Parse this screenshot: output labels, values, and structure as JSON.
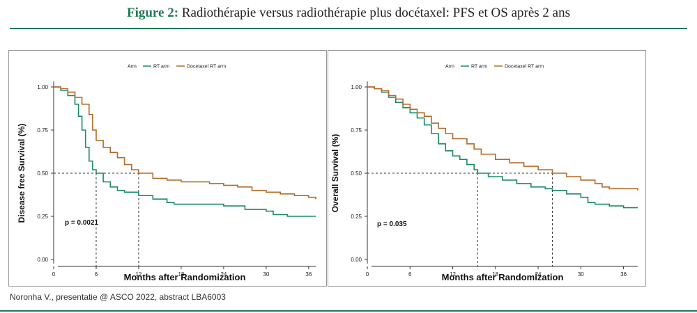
{
  "figure": {
    "label": "Figure 2:",
    "title": "Radiothérapie versus radiothérapie plus docétaxel: PFS et OS après 2 ans"
  },
  "footer": {
    "source": "Noronha V., presentatie @ ASCO 2022, abstract LBA6003"
  },
  "colors": {
    "rt_arm": "#1a8a6a",
    "docetaxel_rt_arm": "#b26a28",
    "accent": "#1f7a56"
  },
  "chart_data": [
    {
      "type": "line",
      "ylabel": "Disease free Survival (%)",
      "xlabel": "Months after Randomization",
      "xlim": [
        0,
        37
      ],
      "ylim": [
        0,
        1
      ],
      "x_ticks": [
        0,
        6,
        12,
        18,
        24,
        30,
        36
      ],
      "y_ticks": [
        0.0,
        0.25,
        0.5,
        0.75,
        1.0
      ],
      "y_tick_labels": [
        "0.00",
        "0.25",
        "0.50",
        "0.75",
        "1.00"
      ],
      "legend": {
        "title": "Arm",
        "entries": [
          "RT arm",
          "Docetaxel RT arm"
        ],
        "position": "top"
      },
      "annotation": "p = 0.0021",
      "medians": [
        6,
        12
      ],
      "series": [
        {
          "name": "RT arm",
          "x": [
            0,
            1,
            2,
            3,
            3.5,
            4,
            4.5,
            5,
            5.5,
            6,
            7,
            8,
            9,
            10,
            12,
            14,
            16,
            17,
            20,
            24,
            27,
            30,
            31,
            33,
            36,
            37
          ],
          "y": [
            1.0,
            0.98,
            0.95,
            0.9,
            0.83,
            0.75,
            0.65,
            0.57,
            0.52,
            0.5,
            0.45,
            0.42,
            0.4,
            0.39,
            0.37,
            0.35,
            0.33,
            0.32,
            0.32,
            0.31,
            0.29,
            0.28,
            0.26,
            0.25,
            0.25,
            0.25
          ]
        },
        {
          "name": "Docetaxel RT arm",
          "x": [
            0,
            1,
            2,
            3,
            4,
            5,
            5.5,
            6,
            7,
            8,
            9,
            10,
            11,
            12,
            14,
            16,
            18,
            20,
            22,
            24,
            26,
            28,
            30,
            32,
            34,
            36,
            37
          ],
          "y": [
            1.0,
            0.99,
            0.97,
            0.94,
            0.9,
            0.84,
            0.75,
            0.69,
            0.65,
            0.62,
            0.59,
            0.55,
            0.52,
            0.5,
            0.47,
            0.46,
            0.45,
            0.45,
            0.44,
            0.43,
            0.42,
            0.4,
            0.39,
            0.38,
            0.37,
            0.36,
            0.35
          ]
        }
      ]
    },
    {
      "type": "line",
      "ylabel": "Overall Survival (%)",
      "xlabel": "Months after Randomization",
      "xlim": [
        0,
        38
      ],
      "ylim": [
        0,
        1
      ],
      "x_ticks": [
        0,
        6,
        12,
        18,
        24,
        30,
        36
      ],
      "y_ticks": [
        0.0,
        0.25,
        0.5,
        0.75,
        1.0
      ],
      "y_tick_labels": [
        "0.00",
        "0.25",
        "0.50",
        "0.75",
        "1.00"
      ],
      "legend": {
        "title": "Arm",
        "entries": [
          "RT arm",
          "Docetaxel RT arm"
        ],
        "position": "top"
      },
      "annotation": "p = 0.035",
      "medians": [
        15.5,
        26
      ],
      "series": [
        {
          "name": "RT arm",
          "x": [
            0,
            1,
            2,
            3,
            4,
            5,
            6,
            7,
            8,
            9,
            10,
            11,
            12,
            13,
            14,
            15,
            15.5,
            17,
            19,
            21,
            23,
            25,
            26,
            28,
            30,
            31,
            32,
            34,
            36,
            38
          ],
          "y": [
            1.0,
            0.99,
            0.97,
            0.94,
            0.91,
            0.88,
            0.85,
            0.82,
            0.78,
            0.73,
            0.67,
            0.63,
            0.6,
            0.58,
            0.55,
            0.52,
            0.5,
            0.48,
            0.46,
            0.44,
            0.42,
            0.41,
            0.4,
            0.38,
            0.36,
            0.33,
            0.32,
            0.31,
            0.3,
            0.3
          ]
        },
        {
          "name": "Docetaxel RT arm",
          "x": [
            0,
            1,
            2,
            3,
            4,
            5,
            6,
            7,
            8,
            9,
            10,
            11,
            12,
            14,
            15,
            16,
            18,
            20,
            22,
            24,
            26,
            28,
            30,
            32,
            33,
            34,
            36,
            38
          ],
          "y": [
            1.0,
            0.99,
            0.98,
            0.95,
            0.93,
            0.9,
            0.87,
            0.85,
            0.83,
            0.79,
            0.76,
            0.73,
            0.7,
            0.67,
            0.64,
            0.61,
            0.58,
            0.56,
            0.54,
            0.52,
            0.5,
            0.48,
            0.46,
            0.44,
            0.42,
            0.41,
            0.41,
            0.4
          ]
        }
      ]
    }
  ]
}
